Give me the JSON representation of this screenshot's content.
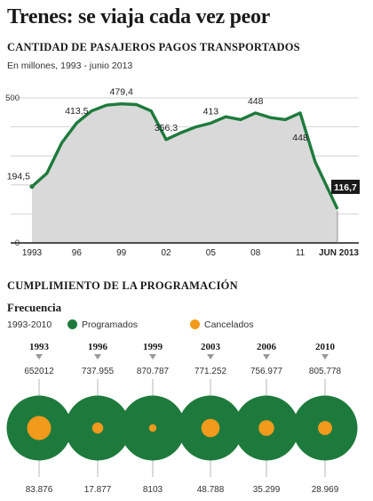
{
  "title": "Trenes: se viaja cada vez peor",
  "section1": {
    "heading": "CANTIDAD DE PASAJEROS PAGOS TRANSPORTADOS",
    "subtitle": "En millones, 1993 - junio 2013"
  },
  "section2": {
    "heading": "CUMPLIMIENTO DE LA PROGRAMACIÓN",
    "frequency_label": "Frecuencia",
    "range_label": "1993-2010",
    "legend": [
      {
        "label": "Programados",
        "color": "#1e7a3c"
      },
      {
        "label": "Cancelados",
        "color": "#f29a1c"
      }
    ]
  },
  "colors": {
    "line": "#1e7a3c",
    "area": "#d9d9d9",
    "accent": "#f29a1c",
    "programados": "#1e7a3c"
  },
  "chart_data": [
    {
      "type": "area",
      "title": "CANTIDAD DE PASAJEROS PAGOS TRANSPORTADOS",
      "subtitle": "En millones, 1993 - junio 2013",
      "x": [
        1993,
        1994,
        1995,
        1996,
        1997,
        1998,
        1999,
        2000,
        2001,
        2002,
        2003,
        2004,
        2005,
        2006,
        2007,
        2008,
        2009,
        2010,
        2011,
        2012,
        2013.5
      ],
      "values": [
        194.5,
        240,
        345,
        413.5,
        455,
        475,
        479.4,
        477,
        455,
        356.3,
        380,
        400,
        413,
        435,
        425,
        448,
        432,
        425,
        448,
        280,
        116.7
      ],
      "labeled_points": [
        {
          "x": 1993,
          "label": "194,5"
        },
        {
          "x": 1996,
          "label": "413,5"
        },
        {
          "x": 1999,
          "label": "479,4"
        },
        {
          "x": 2002,
          "label": "356,3"
        },
        {
          "x": 2005,
          "label": "413"
        },
        {
          "x": 2008,
          "label": "448"
        },
        {
          "x": 2011,
          "label": "448"
        },
        {
          "x": 2013.5,
          "label": "116,7",
          "highlight": true
        }
      ],
      "x_ticks": [
        {
          "x": 1993,
          "label": "1993"
        },
        {
          "x": 1996,
          "label": "96"
        },
        {
          "x": 1999,
          "label": "99"
        },
        {
          "x": 2002,
          "label": "02"
        },
        {
          "x": 2005,
          "label": "05"
        },
        {
          "x": 2008,
          "label": "08"
        },
        {
          "x": 2011,
          "label": "11"
        },
        {
          "x": 2013.5,
          "label": "JUN 2013",
          "bold": true
        }
      ],
      "y_ticks": [
        0,
        500
      ],
      "ylim": [
        0,
        500
      ],
      "xlim": [
        1993,
        2013.5
      ],
      "grid": true
    },
    {
      "type": "bubble",
      "title": "CUMPLIMIENTO DE LA PROGRAMACIÓN",
      "categories": [
        "1993",
        "1996",
        "1999",
        "2003",
        "2006",
        "2010"
      ],
      "series": [
        {
          "name": "Programados",
          "labels": [
            "652012",
            "737.955",
            "870.787",
            "771.252",
            "756.977",
            "805.778"
          ],
          "values": [
            652012,
            737955,
            870787,
            771252,
            756977,
            805778
          ]
        },
        {
          "name": "Cancelados",
          "labels": [
            "83.876",
            "17.877",
            "8103",
            "48.788",
            "35.299",
            "28.969"
          ],
          "values": [
            83876,
            17877,
            8103,
            48788,
            35299,
            28969
          ]
        }
      ]
    }
  ]
}
